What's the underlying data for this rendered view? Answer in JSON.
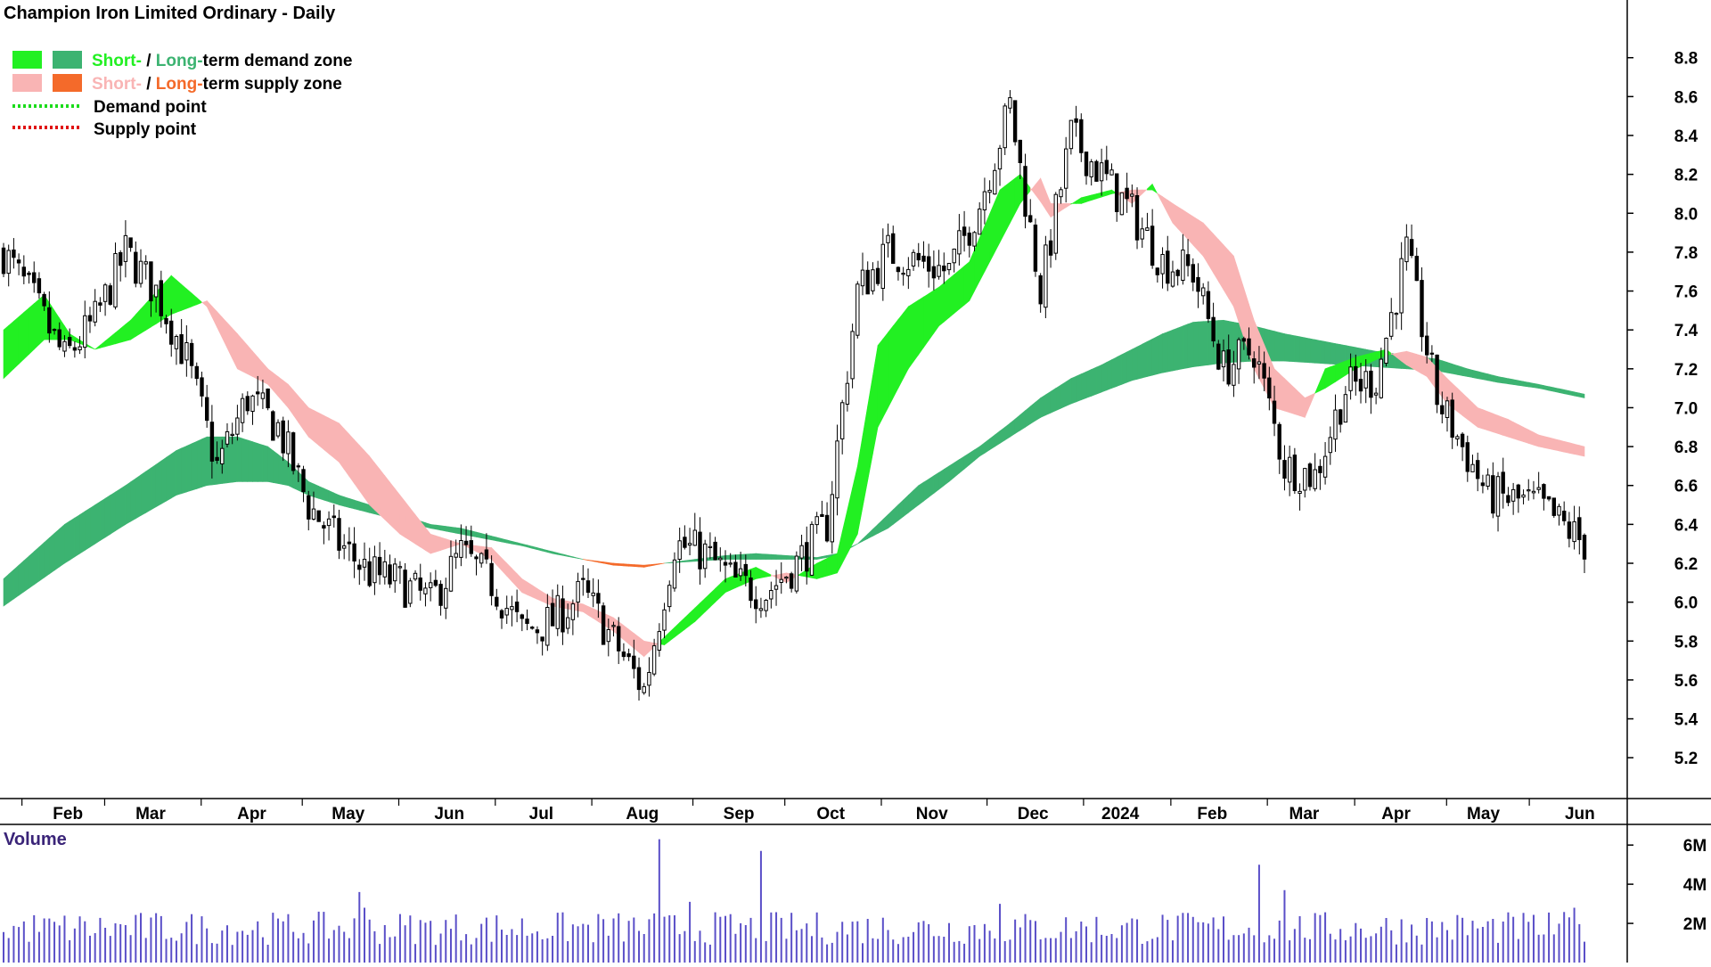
{
  "chart_data": {
    "type": "candlestick",
    "title": "Champion Iron Limited Ordinary - Daily",
    "colors": {
      "short_demand": "#22f022",
      "long_demand": "#3cb371",
      "short_supply": "#f9b4b4",
      "long_supply": "#f46a2a",
      "demand_point": "#1bdc1b",
      "supply_point": "#e01010",
      "candle": "#000000",
      "volume": "#5a4fc8",
      "volume_label": "#3a2478"
    },
    "legend": {
      "row1": {
        "short": "Short-",
        "sep": " / ",
        "long": "Long-",
        "rest": "term demand zone"
      },
      "row2": {
        "short": "Short-",
        "sep": " / ",
        "long": "Long-",
        "rest": "term supply zone"
      },
      "row3": "Demand point",
      "row4": "Supply point"
    },
    "x_labels": [
      "Feb",
      "Mar",
      "Apr",
      "May",
      "Jun",
      "Jul",
      "Aug",
      "Sep",
      "Oct",
      "Nov",
      "Dec",
      "2024",
      "Feb",
      "Mar",
      "Apr",
      "May",
      "Jun"
    ],
    "y_ticks": [
      "8.8",
      "8.6",
      "8.4",
      "8.2",
      "8.0",
      "7.8",
      "7.6",
      "7.4",
      "7.2",
      "7.0",
      "6.8",
      "6.6",
      "6.4",
      "6.2",
      "6.0",
      "5.8",
      "5.6",
      "5.4",
      "5.2"
    ],
    "ylim": [
      5.1,
      8.95
    ],
    "price_path": {
      "days": [
        0,
        6,
        12,
        18,
        24,
        30,
        36,
        42,
        48,
        54,
        60,
        66,
        72,
        78,
        84,
        90,
        96,
        102,
        108,
        114,
        120,
        126,
        132,
        138,
        144,
        150,
        156,
        162,
        168,
        174,
        180,
        186,
        192,
        198,
        204,
        210,
        216,
        222,
        228,
        234,
        240,
        246,
        252,
        258,
        264,
        270,
        276,
        282,
        292,
        302,
        311
      ],
      "close": [
        7.8,
        7.55,
        7.25,
        7.45,
        7.8,
        7.6,
        7.25,
        6.7,
        7.05,
        6.9,
        6.5,
        6.3,
        6.15,
        6.1,
        6.0,
        6.25,
        6.1,
        5.85,
        5.9,
        6.05,
        5.8,
        5.55,
        6.3,
        6.25,
        6.1,
        6.05,
        6.2,
        6.4,
        7.6,
        7.8,
        7.75,
        7.7,
        8.05,
        8.55,
        7.6,
        8.4,
        8.2,
        8.0,
        7.75,
        7.7,
        7.2,
        7.3,
        6.7,
        6.65,
        7.1,
        7.15,
        7.8,
        7.05,
        6.55,
        6.5,
        6.3
      ]
    },
    "zones": {
      "short_days": [
        0,
        8,
        13,
        18,
        25,
        33,
        40,
        46,
        52,
        56,
        60,
        66,
        72,
        78,
        84,
        90,
        96,
        102,
        108,
        114,
        120,
        126,
        130,
        136,
        142,
        148,
        154,
        160,
        164,
        168,
        172,
        178,
        184,
        190,
        196,
        200,
        204,
        206,
        212,
        218,
        222,
        226,
        230,
        236,
        242,
        246,
        250,
        256,
        260,
        266,
        272,
        276,
        280,
        284,
        290,
        296,
        302,
        311
      ],
      "short_fast": [
        7.4,
        7.58,
        7.38,
        7.3,
        7.45,
        7.68,
        7.52,
        7.2,
        7.12,
        7.0,
        6.85,
        6.72,
        6.5,
        6.35,
        6.25,
        6.3,
        6.22,
        6.05,
        5.98,
        5.95,
        5.85,
        5.72,
        5.82,
        5.97,
        6.12,
        6.18,
        6.1,
        6.2,
        6.25,
        6.7,
        7.32,
        7.52,
        7.62,
        7.75,
        8.12,
        8.2,
        8.06,
        7.98,
        8.08,
        8.12,
        8.05,
        8.15,
        7.95,
        7.78,
        7.52,
        7.2,
        7.0,
        6.95,
        7.2,
        7.26,
        7.3,
        7.22,
        7.16,
        7.02,
        6.9,
        6.85,
        6.8,
        6.75
      ],
      "short_slow": [
        7.15,
        7.35,
        7.35,
        7.3,
        7.35,
        7.48,
        7.55,
        7.38,
        7.2,
        7.12,
        7.0,
        6.92,
        6.75,
        6.55,
        6.35,
        6.3,
        6.28,
        6.12,
        6.02,
        5.99,
        5.92,
        5.8,
        5.78,
        5.9,
        6.05,
        6.12,
        6.15,
        6.12,
        6.15,
        6.35,
        6.9,
        7.2,
        7.42,
        7.55,
        7.85,
        8.05,
        8.18,
        8.05,
        8.05,
        8.1,
        8.12,
        8.12,
        8.05,
        7.95,
        7.78,
        7.45,
        7.2,
        7.05,
        7.1,
        7.2,
        7.27,
        7.29,
        7.26,
        7.15,
        7.0,
        6.94,
        6.86,
        6.8
      ],
      "long_days": [
        0,
        12,
        24,
        34,
        40,
        46,
        52,
        56,
        60,
        66,
        72,
        78,
        84,
        90,
        96,
        102,
        108,
        114,
        120,
        126,
        130,
        136,
        142,
        148,
        154,
        160,
        164,
        168,
        174,
        180,
        186,
        192,
        198,
        204,
        210,
        216,
        222,
        228,
        234,
        240,
        246,
        252,
        258,
        264,
        270,
        276,
        282,
        288,
        294,
        302,
        311
      ],
      "long_fast": [
        6.12,
        6.4,
        6.6,
        6.78,
        6.85,
        6.85,
        6.8,
        6.72,
        6.62,
        6.55,
        6.5,
        6.45,
        6.4,
        6.38,
        6.34,
        6.3,
        6.26,
        6.22,
        6.19,
        6.18,
        6.2,
        6.22,
        6.24,
        6.25,
        6.24,
        6.23,
        6.25,
        6.3,
        6.45,
        6.6,
        6.7,
        6.8,
        6.92,
        7.05,
        7.15,
        7.22,
        7.3,
        7.38,
        7.44,
        7.45,
        7.42,
        7.38,
        7.35,
        7.32,
        7.29,
        7.27,
        7.25,
        7.2,
        7.16,
        7.12,
        7.07
      ],
      "long_slow": [
        5.98,
        6.2,
        6.4,
        6.55,
        6.6,
        6.62,
        6.62,
        6.6,
        6.55,
        6.5,
        6.46,
        6.42,
        6.38,
        6.35,
        6.32,
        6.29,
        6.25,
        6.22,
        6.2,
        6.19,
        6.2,
        6.21,
        6.22,
        6.22,
        6.22,
        6.22,
        6.24,
        6.3,
        6.38,
        6.5,
        6.62,
        6.75,
        6.85,
        6.95,
        7.02,
        7.08,
        7.14,
        7.18,
        7.21,
        7.23,
        7.24,
        7.24,
        7.23,
        7.22,
        7.21,
        7.2,
        7.19,
        7.16,
        7.13,
        7.1,
        7.05
      ]
    },
    "volume": {
      "label": "Volume",
      "ticks": [
        "6M",
        "4M",
        "2M"
      ],
      "ylim": [
        0,
        6.6
      ],
      "spikes": [
        [
          70,
          3.6
        ],
        [
          71,
          2.8
        ],
        [
          129,
          6.3
        ],
        [
          135,
          3.1
        ],
        [
          149,
          5.7
        ],
        [
          196,
          3.0
        ],
        [
          247,
          5.0
        ],
        [
          252,
          3.7
        ],
        [
          309,
          2.8
        ]
      ]
    }
  }
}
